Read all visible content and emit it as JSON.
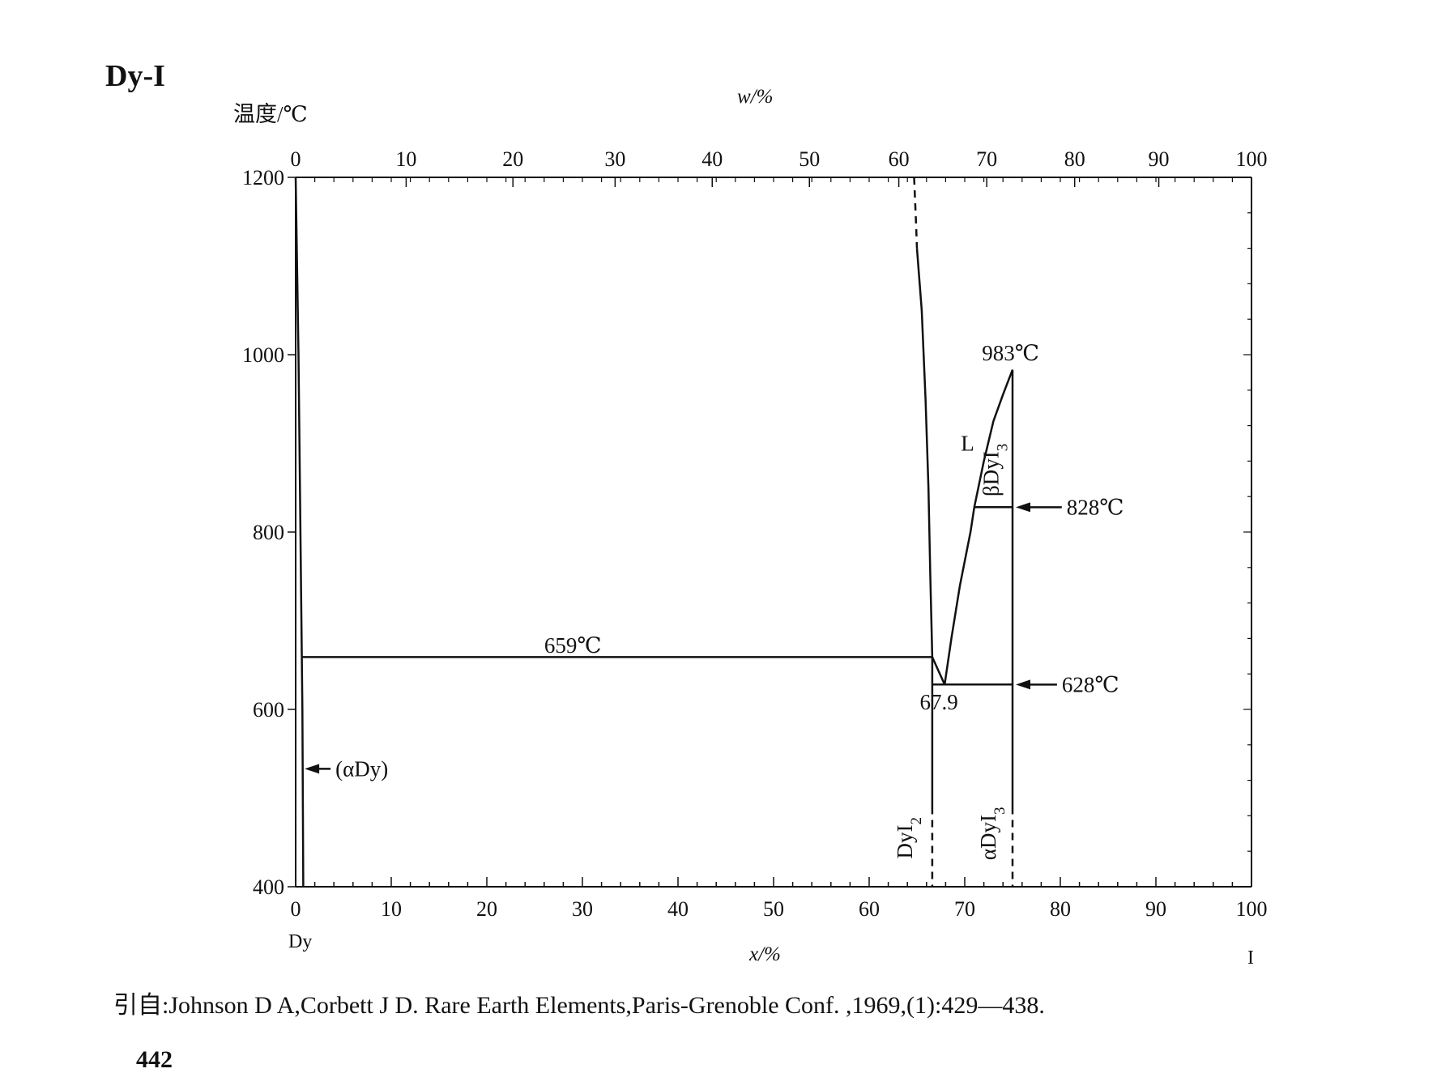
{
  "figure": {
    "title": "Dy-I",
    "citation": "引自:Johnson D A,Corbett J D. Rare Earth Elements,Paris-Grenoble Conf. ,1969,(1):429—438.",
    "page_number": "442"
  },
  "chart_data": {
    "type": "line",
    "title": "Dy-I",
    "ylabel": "温度/℃",
    "xlabel_bottom": "x/%",
    "xlabel_top": "w/%",
    "left_element": "Dy",
    "right_element": "I",
    "x_range": [
      0,
      100
    ],
    "y_range": [
      400,
      1200
    ],
    "x_ticks": [
      "0",
      "10",
      "20",
      "30",
      "40",
      "50",
      "60",
      "70",
      "80",
      "90",
      "100"
    ],
    "y_ticks": [
      "400",
      "600",
      "800",
      "1000",
      "1200"
    ],
    "top_axis": {
      "ticks_w": [
        "0",
        "10",
        "20",
        "30",
        "40",
        "50",
        "60",
        "70",
        "80",
        "90",
        "100"
      ],
      "positions_x": [
        0,
        11.56,
        22.73,
        33.42,
        43.58,
        53.75,
        63.1,
        72.3,
        81.5,
        90.3,
        100
      ]
    },
    "grid": false,
    "series": [
      {
        "kind": "solid",
        "points": [
          [
            0,
            1200
          ],
          [
            0.3,
            1000
          ],
          [
            0.5,
            800
          ],
          [
            0.7,
            600
          ],
          [
            0.8,
            400
          ]
        ]
      },
      {
        "kind": "dashed",
        "points": [
          [
            64.7,
            1200
          ],
          [
            64.9,
            1150
          ],
          [
            65.0,
            1120
          ]
        ]
      },
      {
        "kind": "solid",
        "points": [
          [
            65.0,
            1120
          ],
          [
            65.5,
            1050
          ],
          [
            65.9,
            950
          ],
          [
            66.2,
            850
          ],
          [
            66.4,
            750
          ],
          [
            66.6,
            659
          ]
        ]
      },
      {
        "kind": "solid",
        "points": [
          [
            0.6,
            659
          ],
          [
            66.6,
            659
          ]
        ]
      },
      {
        "kind": "solid",
        "points": [
          [
            66.6,
            659
          ],
          [
            67.9,
            628
          ]
        ]
      },
      {
        "kind": "solid",
        "points": [
          [
            67.9,
            628
          ],
          [
            68.6,
            680
          ],
          [
            69.5,
            740
          ],
          [
            70.6,
            800
          ],
          [
            71.0,
            828
          ],
          [
            72.0,
            880
          ],
          [
            73.0,
            925
          ],
          [
            74.0,
            955
          ],
          [
            75.0,
            983
          ]
        ]
      },
      {
        "kind": "solid",
        "points": [
          [
            66.6,
            628
          ],
          [
            75.0,
            628
          ]
        ]
      },
      {
        "kind": "solid",
        "points": [
          [
            71.0,
            828
          ],
          [
            75.0,
            828
          ]
        ]
      },
      {
        "kind": "solid",
        "points": [
          [
            75.0,
            983
          ],
          [
            75.0,
            490
          ]
        ]
      },
      {
        "kind": "dashed",
        "points": [
          [
            75.0,
            490
          ],
          [
            75.0,
            400
          ]
        ]
      },
      {
        "kind": "solid",
        "points": [
          [
            66.6,
            659
          ],
          [
            66.6,
            490
          ]
        ]
      },
      {
        "kind": "dashed",
        "points": [
          [
            66.6,
            490
          ],
          [
            66.6,
            400
          ]
        ]
      }
    ],
    "annotations": [
      {
        "text": "659℃",
        "x": 29,
        "y": 672
      },
      {
        "text": "983℃",
        "x": 74.8,
        "y": 1002
      },
      {
        "text": "L",
        "x": 70.3,
        "y": 900
      },
      {
        "text": "βDyI3",
        "x": 73.5,
        "y": 870,
        "rotated": true
      },
      {
        "text": "828℃",
        "x": 81,
        "y": 828,
        "arrow_to": [
          75.0,
          828
        ]
      },
      {
        "text": "628℃",
        "x": 80.5,
        "y": 628,
        "arrow_to": [
          75.0,
          628
        ]
      },
      {
        "text": "67.9",
        "x": 67.3,
        "y": 608
      },
      {
        "text": "(αDy)",
        "x": 4.5,
        "y": 533,
        "arrow_to": [
          0.6,
          533
        ]
      },
      {
        "text": "DyI2",
        "x": 64.5,
        "y": 455,
        "rotated": true
      },
      {
        "text": "αDyI3",
        "x": 73.2,
        "y": 460,
        "rotated": true
      }
    ]
  }
}
